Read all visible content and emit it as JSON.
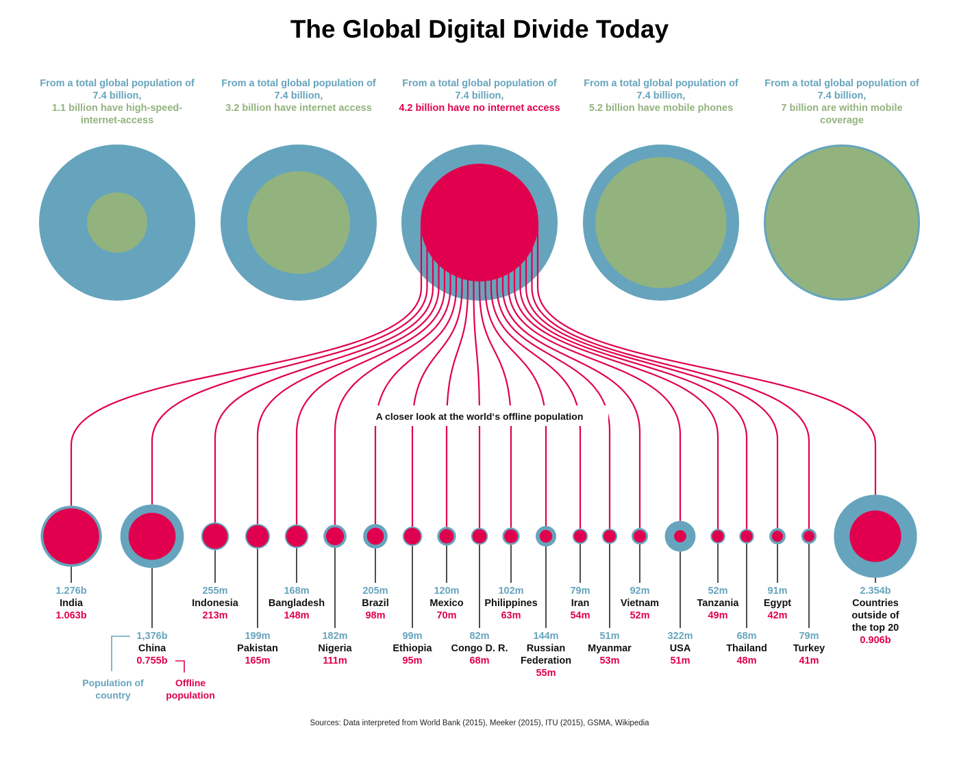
{
  "title": "The Global Digital Divide Today",
  "subtitle": "A closer look at the world‘s offline population",
  "sources": "Sources: Data interpreted from World Bank (2015), Meeker (2015), ITU (2015), GSMA, Wikipedia",
  "colors": {
    "blue": "#66a4bd",
    "green": "#93b37e",
    "red": "#e0004d",
    "black": "#111111"
  },
  "legend": {
    "population": "Population of country",
    "offline": "Offline population"
  },
  "top_circles": [
    {
      "pre": "From a total global population of 7.4 billion,",
      "stat": "1.1 billion have high-speed-internet-access",
      "value_billion": 1.1,
      "fill": "green"
    },
    {
      "pre": "From a total global population of 7.4 billion,",
      "stat": "3.2 billion have internet access",
      "value_billion": 3.2,
      "fill": "green"
    },
    {
      "pre": "From a total global population of 7.4 billion,",
      "stat": "4.2 billion have no internet access",
      "value_billion": 4.2,
      "fill": "red"
    },
    {
      "pre": "From a total global population of 7.4 billion,",
      "stat": "5.2 billion have mobile phones",
      "value_billion": 5.2,
      "fill": "green"
    },
    {
      "pre": "From a total global population of 7.4 billion,",
      "stat": "7 billion are within mobile coverage",
      "value_billion": 7.0,
      "fill": "green"
    }
  ],
  "chart_data": {
    "type": "bubble",
    "title": "The Global Digital Divide Today",
    "total_population_billion": 7.4,
    "countries": [
      {
        "name": "India",
        "population": "1.276b",
        "offline": "1.063b",
        "population_m": 1276,
        "offline_m": 1063,
        "row": "upper"
      },
      {
        "name": "China",
        "population": "1,376b",
        "offline": "0.755b",
        "population_m": 1376,
        "offline_m": 755,
        "row": "lower"
      },
      {
        "name": "Indonesia",
        "population": "255m",
        "offline": "213m",
        "population_m": 255,
        "offline_m": 213,
        "row": "upper"
      },
      {
        "name": "Pakistan",
        "population": "199m",
        "offline": "165m",
        "population_m": 199,
        "offline_m": 165,
        "row": "lower"
      },
      {
        "name": "Bangladesh",
        "population": "168m",
        "offline": "148m",
        "population_m": 168,
        "offline_m": 148,
        "row": "upper"
      },
      {
        "name": "Nigeria",
        "population": "182m",
        "offline": "111m",
        "population_m": 182,
        "offline_m": 111,
        "row": "lower"
      },
      {
        "name": "Brazil",
        "population": "205m",
        "offline": "98m",
        "population_m": 205,
        "offline_m": 98,
        "row": "upper"
      },
      {
        "name": "Ethiopia",
        "population": "99m",
        "offline": "95m",
        "population_m": 99,
        "offline_m": 95,
        "row": "lower"
      },
      {
        "name": "Mexico",
        "population": "120m",
        "offline": "70m",
        "population_m": 120,
        "offline_m": 70,
        "row": "upper"
      },
      {
        "name": "Congo D. R.",
        "population": "82m",
        "offline": "68m",
        "population_m": 82,
        "offline_m": 68,
        "row": "lower"
      },
      {
        "name": "Philippines",
        "population": "102m",
        "offline": "63m",
        "population_m": 102,
        "offline_m": 63,
        "row": "upper"
      },
      {
        "name": "Russian Federation",
        "population": "144m",
        "offline": "55m",
        "population_m": 144,
        "offline_m": 55,
        "row": "lower"
      },
      {
        "name": "Iran",
        "population": "79m",
        "offline": "54m",
        "population_m": 79,
        "offline_m": 54,
        "row": "upper"
      },
      {
        "name": "Myanmar",
        "population": "51m",
        "offline": "53m",
        "population_m": 51,
        "offline_m": 53,
        "row": "lower"
      },
      {
        "name": "Vietnam",
        "population": "92m",
        "offline": "52m",
        "population_m": 92,
        "offline_m": 52,
        "row": "upper"
      },
      {
        "name": "USA",
        "population": "322m",
        "offline": "51m",
        "population_m": 322,
        "offline_m": 51,
        "row": "lower"
      },
      {
        "name": "Tanzania",
        "population": "52m",
        "offline": "49m",
        "population_m": 52,
        "offline_m": 49,
        "row": "upper"
      },
      {
        "name": "Thailand",
        "population": "68m",
        "offline": "48m",
        "population_m": 68,
        "offline_m": 48,
        "row": "lower"
      },
      {
        "name": "Egypt",
        "population": "91m",
        "offline": "42m",
        "population_m": 91,
        "offline_m": 42,
        "row": "upper"
      },
      {
        "name": "Turkey",
        "population": "79m",
        "offline": "41m",
        "population_m": 79,
        "offline_m": 41,
        "row": "lower"
      },
      {
        "name": "Countries outside of the top 20",
        "population": "2.354b",
        "offline": "0.906b",
        "population_m": 2354,
        "offline_m": 906,
        "row": "upper"
      }
    ]
  }
}
